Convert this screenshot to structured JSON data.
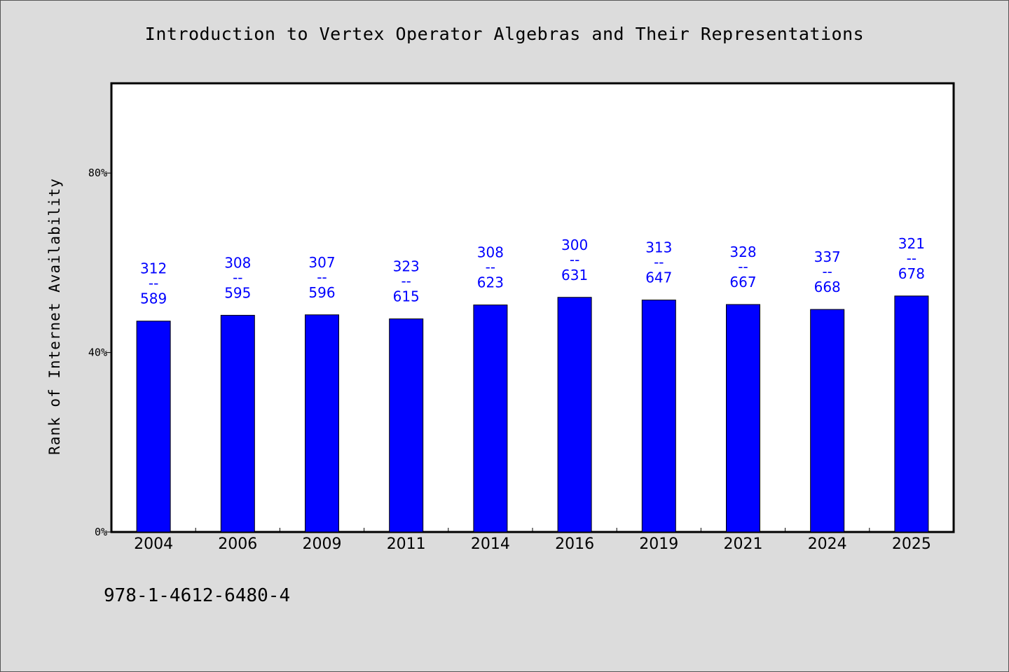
{
  "chart_data": {
    "type": "bar",
    "title": "Introduction to Vertex Operator Algebras and Their Representations",
    "ylabel": "Rank of Internet Availability",
    "xlabel": "",
    "categories": [
      "2004",
      "2006",
      "2009",
      "2011",
      "2014",
      "2016",
      "2019",
      "2021",
      "2024",
      "2025"
    ],
    "values": [
      47.0,
      48.3,
      48.4,
      47.5,
      50.6,
      52.3,
      51.7,
      50.7,
      49.6,
      52.6
    ],
    "label_top": [
      "312",
      "308",
      "307",
      "323",
      "308",
      "300",
      "313",
      "328",
      "337",
      "321"
    ],
    "label_mid": "--",
    "label_bottom": [
      "589",
      "595",
      "596",
      "615",
      "623",
      "631",
      "647",
      "667",
      "668",
      "678"
    ],
    "yticks": [
      0,
      40,
      80
    ],
    "ytick_labels": [
      "0%",
      "40%",
      "80%"
    ],
    "ylim": [
      0,
      100
    ],
    "bar_color": "#0000ff",
    "label_color": "#0000ff",
    "grid": false,
    "legend": "none"
  },
  "footer": {
    "isbn": "978-1-4612-6480-4"
  }
}
